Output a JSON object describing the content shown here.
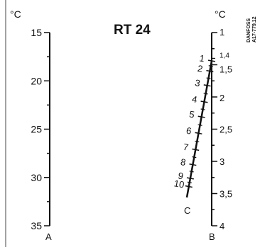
{
  "title": "RT 24",
  "reference": "DANFOSS\nA17-779.12",
  "scale_a": {
    "name": "A",
    "unit": "°C",
    "labels": [
      "15",
      "20",
      "25",
      "30",
      "35"
    ]
  },
  "scale_b": {
    "name": "B",
    "unit": "°C",
    "labels": [
      "1",
      "1,4",
      "1,5",
      "2",
      "2,5",
      "3",
      "3,5",
      "4"
    ]
  },
  "scale_c": {
    "name": "C",
    "labels": [
      "1",
      "2",
      "3",
      "4",
      "5",
      "6",
      "7",
      "8",
      "9",
      "10"
    ]
  },
  "colors": {
    "ink": "#111111",
    "background": "#ffffff"
  }
}
